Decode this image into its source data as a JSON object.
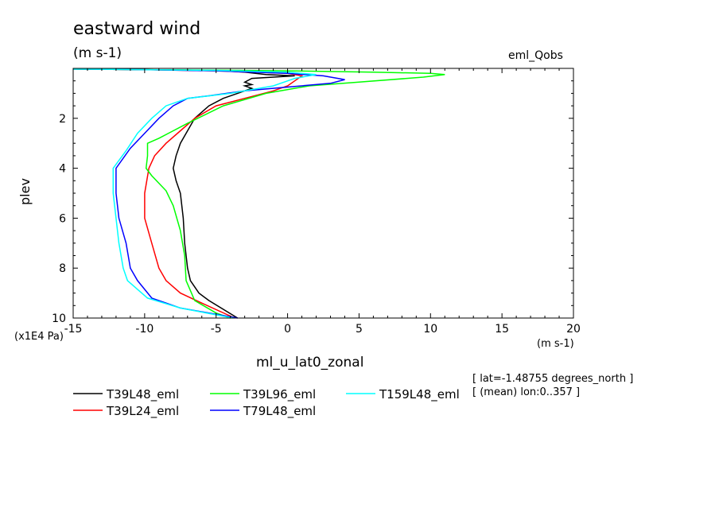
{
  "header": {
    "title": "eastward wind",
    "units": "(m s-1)",
    "run_name": "eml_Qobs"
  },
  "footer": {
    "info_lat": "[ lat=-1.48755 degrees_north ]",
    "info_lon": "[ (mean) lon:0..357 ]"
  },
  "chart_data": {
    "type": "line",
    "title": "eastward wind",
    "xlabel": "ml_u_lat0_zonal",
    "xunits": "(m s-1)",
    "ylabel": "plev",
    "yunits": "(x1E4 Pa)",
    "xlim": [
      -15,
      20
    ],
    "ylim": [
      10,
      0
    ],
    "x_ticks": [
      "-15",
      "-10",
      "-5",
      "0",
      "5",
      "10",
      "15",
      "20"
    ],
    "y_ticks": [
      "2",
      "4",
      "6",
      "8",
      "10"
    ],
    "grid": false,
    "legend_position": "bottom",
    "series": [
      {
        "name": "T39L48_eml",
        "color": "#000000",
        "points": [
          [
            -15,
            0.03
          ],
          [
            -10,
            0.05
          ],
          [
            -5,
            0.08
          ],
          [
            -3,
            0.15
          ],
          [
            -1.5,
            0.25
          ],
          [
            0.5,
            0.3
          ],
          [
            -2.5,
            0.4
          ],
          [
            -3,
            0.55
          ],
          [
            -2.5,
            0.65
          ],
          [
            -3,
            0.7
          ],
          [
            -2.5,
            0.8
          ],
          [
            -3.5,
            1.0
          ],
          [
            -4.5,
            1.2
          ],
          [
            -5.5,
            1.5
          ],
          [
            -6.5,
            2.0
          ],
          [
            -7,
            2.5
          ],
          [
            -7.5,
            3.0
          ],
          [
            -7.8,
            3.5
          ],
          [
            -8,
            4.0
          ],
          [
            -7.8,
            4.5
          ],
          [
            -7.5,
            5.0
          ],
          [
            -7.3,
            6.0
          ],
          [
            -7.2,
            7.0
          ],
          [
            -7.0,
            8.0
          ],
          [
            -6.8,
            8.5
          ],
          [
            -6.2,
            9.0
          ],
          [
            -5.5,
            9.3
          ],
          [
            -3.5,
            10.0
          ]
        ]
      },
      {
        "name": "T39L24_eml",
        "color": "#ff0000",
        "points": [
          [
            -15,
            0.03
          ],
          [
            -10,
            0.05
          ],
          [
            -5,
            0.1
          ],
          [
            0,
            0.2
          ],
          [
            1,
            0.3
          ],
          [
            0.5,
            0.5
          ],
          [
            0,
            0.7
          ],
          [
            -1,
            0.9
          ],
          [
            -3,
            1.2
          ],
          [
            -5,
            1.5
          ],
          [
            -6.5,
            2.0
          ],
          [
            -7.5,
            2.5
          ],
          [
            -8.5,
            3.0
          ],
          [
            -9.3,
            3.5
          ],
          [
            -9.7,
            4.0
          ],
          [
            -10,
            5.0
          ],
          [
            -10,
            6.0
          ],
          [
            -9.5,
            7.0
          ],
          [
            -9,
            8.0
          ],
          [
            -8.5,
            8.5
          ],
          [
            -7.5,
            9.0
          ],
          [
            -6,
            9.4
          ],
          [
            -3.7,
            10.0
          ]
        ]
      },
      {
        "name": "T39L96_eml",
        "color": "#00ff00",
        "points": [
          [
            -15,
            0.03
          ],
          [
            -10,
            0.05
          ],
          [
            -5,
            0.07
          ],
          [
            0,
            0.1
          ],
          [
            6,
            0.15
          ],
          [
            10,
            0.2
          ],
          [
            11,
            0.25
          ],
          [
            9.5,
            0.35
          ],
          [
            5,
            0.55
          ],
          [
            1.5,
            0.7
          ],
          [
            -1.5,
            1.0
          ],
          [
            -4.5,
            1.5
          ],
          [
            -7,
            2.2
          ],
          [
            -8,
            2.5
          ],
          [
            -9,
            2.8
          ],
          [
            -9.8,
            3.0
          ],
          [
            -9.8,
            3.5
          ],
          [
            -9.9,
            4.0
          ],
          [
            -9.5,
            4.3
          ],
          [
            -8.5,
            4.9
          ],
          [
            -8,
            5.5
          ],
          [
            -7.5,
            6.5
          ],
          [
            -7.2,
            7.5
          ],
          [
            -7.1,
            8.5
          ],
          [
            -6.5,
            9.3
          ],
          [
            -5,
            9.8
          ],
          [
            -4,
            10.0
          ]
        ]
      },
      {
        "name": "T79L48_eml",
        "color": "#0000ff",
        "points": [
          [
            -15,
            0.03
          ],
          [
            -10,
            0.05
          ],
          [
            -5,
            0.1
          ],
          [
            0,
            0.2
          ],
          [
            2.5,
            0.3
          ],
          [
            4,
            0.45
          ],
          [
            3,
            0.6
          ],
          [
            0,
            0.75
          ],
          [
            -3,
            0.9
          ],
          [
            -5.5,
            1.1
          ],
          [
            -7,
            1.2
          ],
          [
            -8,
            1.5
          ],
          [
            -9,
            2.0
          ],
          [
            -10,
            2.6
          ],
          [
            -11,
            3.2
          ],
          [
            -12,
            4.0
          ],
          [
            -12,
            5.0
          ],
          [
            -11.8,
            6.0
          ],
          [
            -11.3,
            7.0
          ],
          [
            -11,
            8.0
          ],
          [
            -10.5,
            8.5
          ],
          [
            -9.5,
            9.2
          ],
          [
            -7.5,
            9.6
          ],
          [
            -3.5,
            10.0
          ]
        ]
      },
      {
        "name": "T159L48_eml",
        "color": "#00ffff",
        "points": [
          [
            -15,
            0.03
          ],
          [
            -10,
            0.05
          ],
          [
            -5,
            0.08
          ],
          [
            0,
            0.15
          ],
          [
            2,
            0.25
          ],
          [
            0.5,
            0.4
          ],
          [
            -1,
            0.7
          ],
          [
            -4,
            1.0
          ],
          [
            -7,
            1.2
          ],
          [
            -8.5,
            1.5
          ],
          [
            -9.5,
            2.0
          ],
          [
            -10.5,
            2.6
          ],
          [
            -11.3,
            3.3
          ],
          [
            -12.2,
            4.0
          ],
          [
            -12.2,
            5.0
          ],
          [
            -12,
            6.0
          ],
          [
            -11.8,
            7.0
          ],
          [
            -11.5,
            8.0
          ],
          [
            -11.2,
            8.5
          ],
          [
            -9.8,
            9.2
          ],
          [
            -7.5,
            9.6
          ],
          [
            -3.8,
            10.0
          ]
        ]
      }
    ]
  }
}
